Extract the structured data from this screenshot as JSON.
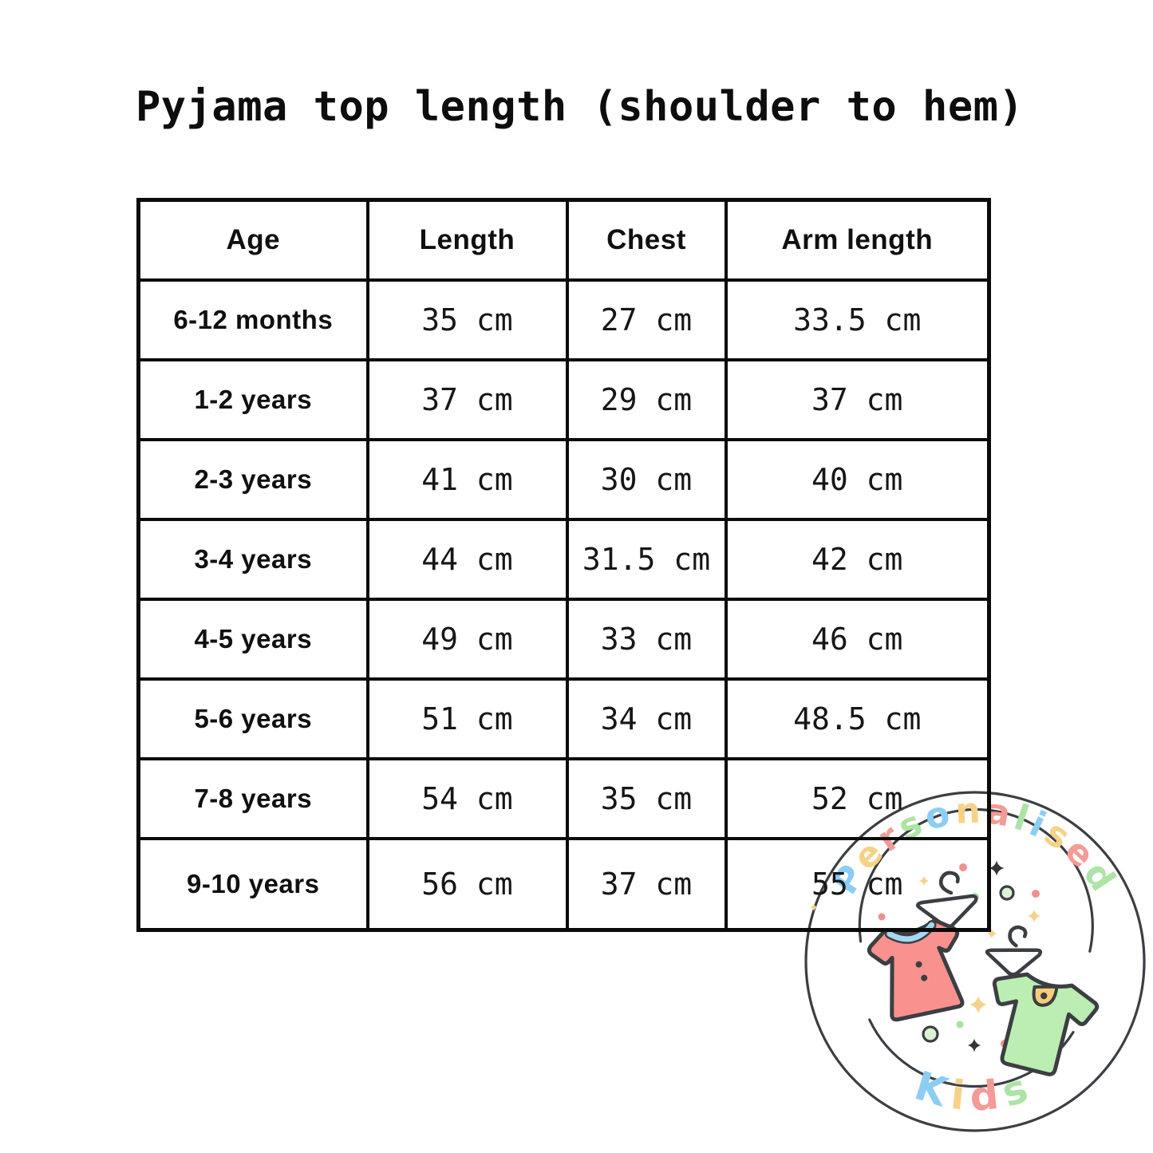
{
  "title": "Pyjama top length (shoulder to hem)",
  "table": {
    "headers": [
      "Age",
      "Length",
      "Chest",
      "Arm length"
    ],
    "rows": [
      {
        "age": "6-12 months",
        "length": "35 cm",
        "chest": "27 cm",
        "arm": "33.5 cm"
      },
      {
        "age": "1-2 years",
        "length": "37 cm",
        "chest": "29 cm",
        "arm": "37 cm"
      },
      {
        "age": "2-3 years",
        "length": "41 cm",
        "chest": "30 cm",
        "arm": "40 cm"
      },
      {
        "age": "3-4 years",
        "length": "44 cm",
        "chest": "31.5 cm",
        "arm": "42 cm"
      },
      {
        "age": "4-5 years",
        "length": "49 cm",
        "chest": "33 cm",
        "arm": "46 cm"
      },
      {
        "age": "5-6 years",
        "length": "51 cm",
        "chest": "34 cm",
        "arm": "48.5 cm"
      },
      {
        "age": "7-8 years",
        "length": "54 cm",
        "chest": "35 cm",
        "arm": "52 cm"
      },
      {
        "age": "9-10 years",
        "length": "56 cm",
        "chest": "37 cm",
        "arm": "55 cm"
      }
    ]
  },
  "watermark": {
    "brand_top": "Personalised",
    "brand_bottom": "Kids",
    "letter_palette": [
      "#8CCDF4",
      "#F6D287",
      "#F59A96",
      "#ABE4A4"
    ],
    "colors": {
      "outline": "#3B3E43",
      "dress_coral": "#F9928E",
      "tee_green": "#BCEDB2",
      "collar_blue": "#A6D8F2",
      "pocket_yellow": "#F6CE79",
      "sparkle_yellow": "#F5D28B",
      "dot_red": "#F2908F",
      "dot_green": "#A5E39E",
      "ring_green_fill": "#D9F3D4",
      "table_line": "#0b0b0b"
    }
  }
}
